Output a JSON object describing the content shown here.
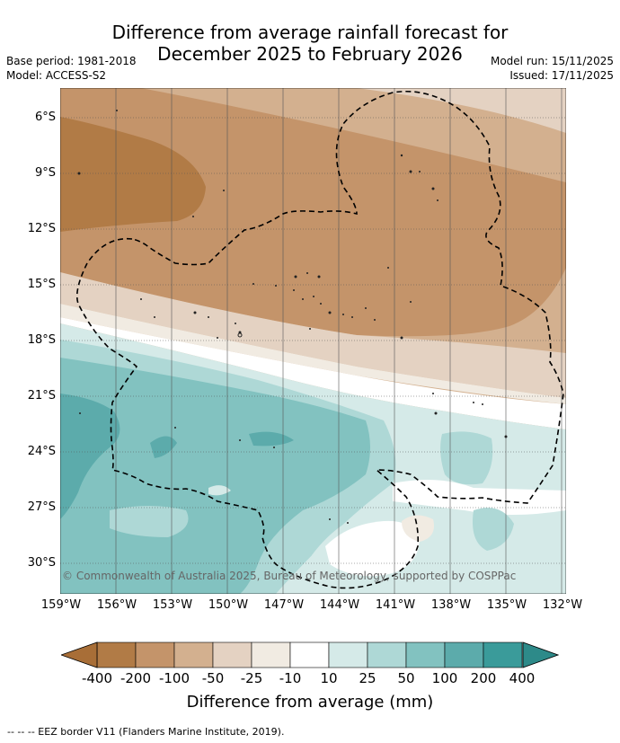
{
  "title_line1": "Difference from average rainfall forecast for",
  "title_line2": "December 2025 to February 2026",
  "base_period": "Base period: 1981-2018",
  "model": "Model: ACCESS-S2",
  "model_run": "Model run: 15/11/2025",
  "issued": "Issued: 17/11/2025",
  "lat_labels": [
    "6°S",
    "9°S",
    "12°S",
    "15°S",
    "18°S",
    "21°S",
    "24°S",
    "27°S",
    "30°S"
  ],
  "lon_labels": [
    "159°W",
    "156°W",
    "153°W",
    "150°W",
    "147°W",
    "144°W",
    "141°W",
    "138°W",
    "135°W",
    "132°W"
  ],
  "copyright": "© Commonwealth of Australia 2025, Bureau of Meteorology, supported by COSPPac",
  "colorbar": {
    "labels": [
      "-400",
      "-200",
      "-100",
      "-50",
      "-25",
      "-10",
      "10",
      "25",
      "50",
      "100",
      "200",
      "400"
    ],
    "colors": [
      "#a86e37",
      "#b17b46",
      "#c4946a",
      "#d3b08f",
      "#e4d2c2",
      "#f1ebe2",
      "#ffffff",
      "#d5eae8",
      "#aed8d6",
      "#82c2c0",
      "#5cabab",
      "#3a9b9a",
      "#2d8a89"
    ],
    "title": "Difference from average (mm)"
  },
  "footnote": "-- -- -- EEZ border V11 (Flanders Marine Institute, 2019)."
}
